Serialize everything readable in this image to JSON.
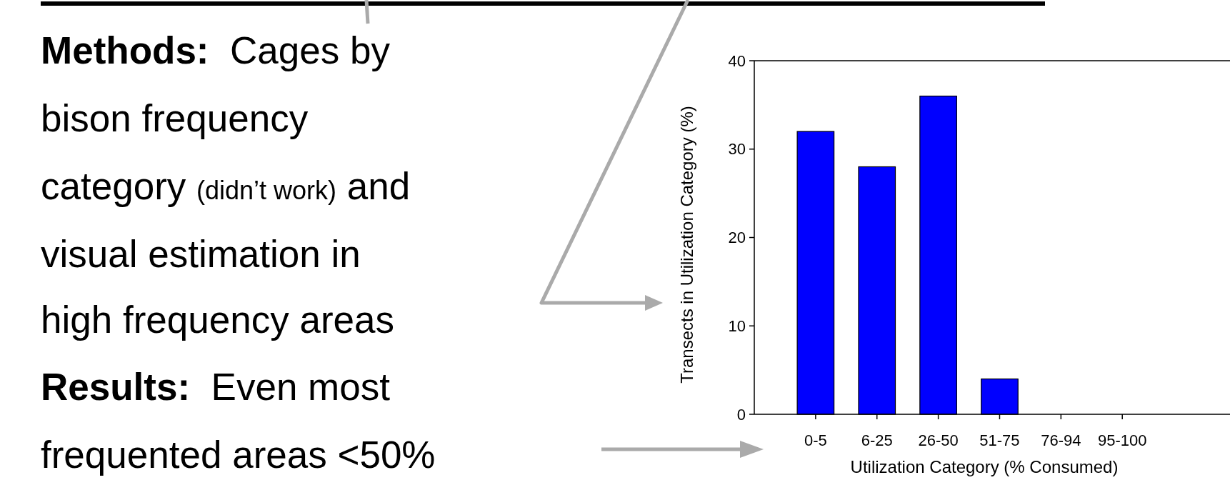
{
  "chart_data": {
    "type": "bar",
    "xlabel": "Utilization Category (% Consumed)",
    "ylabel": "Transects in Utilization Category (%)",
    "categories": [
      "0-5",
      "6-25",
      "26-50",
      "51-75",
      "76-94",
      "95-100"
    ],
    "values": [
      32,
      28,
      36,
      4,
      0,
      0
    ],
    "color": "#0000ff",
    "ylim": [
      0,
      40
    ],
    "yticks": [
      0,
      10,
      20,
      30,
      40
    ],
    "annotations": [
      "Methods:  Cages by",
      "bison frequency",
      "category (didn’t work) and",
      "visual estimation in",
      "high frequency areas",
      "Results:  Even most",
      "frequented areas <50%"
    ]
  }
}
